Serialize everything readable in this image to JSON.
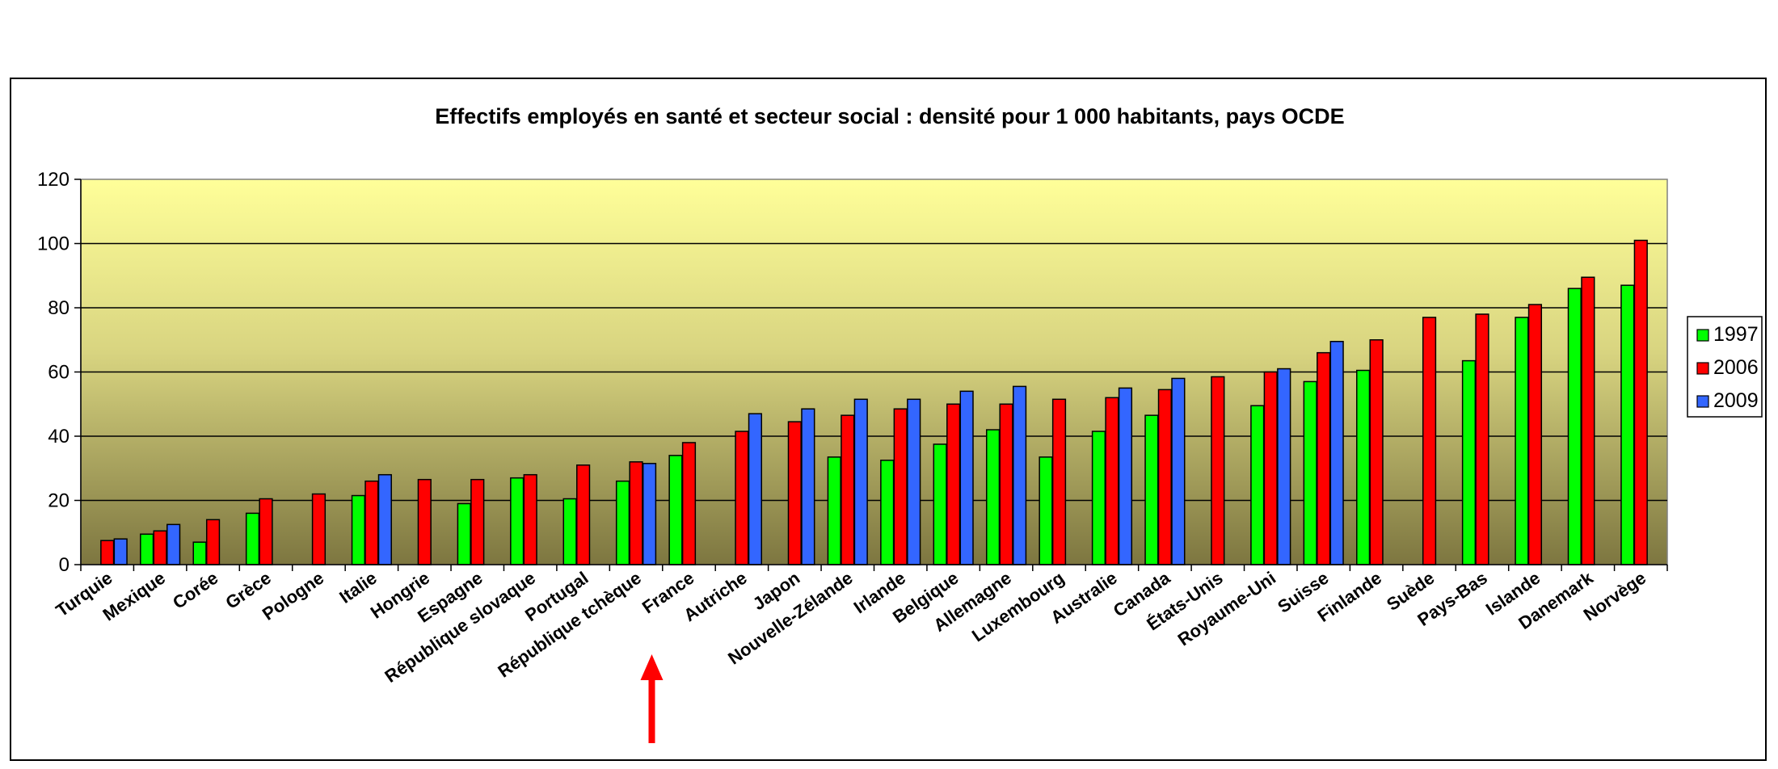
{
  "chart_data": {
    "type": "bar",
    "title": "Effectifs employés en santé et secteur social : densité pour 1 000 habitants, pays OCDE",
    "xlabel": "",
    "ylabel": "",
    "ylim": [
      0,
      120
    ],
    "yticks": [
      "0",
      "20",
      "40",
      "60",
      "80",
      "100",
      "120"
    ],
    "grid": true,
    "legend_position": "right",
    "categories": [
      "Turquie",
      "Mexique",
      "Corée",
      "Grèce",
      "Pologne",
      "Italie",
      "Hongrie",
      "Espagne",
      "République slovaque",
      "Portugal",
      "République tchèque",
      "France",
      "Autriche",
      "Japon",
      "Nouvelle-Zélande",
      "Irlande",
      "Belgique",
      "Allemagne",
      "Luxembourg",
      "Australie",
      "Canada",
      "États-Unis",
      "Royaume-Uni",
      "Suisse",
      "Finlande",
      "Suède",
      "Pays-Bas",
      "Islande",
      "Danemark",
      "Norvège"
    ],
    "series": [
      {
        "name": "1997",
        "color": "#00ff00",
        "values": [
          null,
          9.5,
          7,
          16,
          null,
          21.5,
          null,
          19,
          27,
          20.5,
          26,
          34,
          null,
          null,
          33.5,
          32.5,
          37.5,
          42,
          33.5,
          41.5,
          46.5,
          null,
          49.5,
          57,
          60.5,
          null,
          63.5,
          77,
          86,
          87
        ]
      },
      {
        "name": "2006",
        "color": "#ff0000",
        "values": [
          7.5,
          10.5,
          14,
          20.5,
          22,
          26,
          26.5,
          26.5,
          28,
          31,
          32,
          38,
          41.5,
          44.5,
          46.5,
          48.5,
          50,
          50,
          51.5,
          52,
          54.5,
          58.5,
          60,
          66,
          70,
          77,
          78,
          81,
          89.5,
          101
        ]
      },
      {
        "name": "2009",
        "color": "#3366ff",
        "values": [
          8,
          12.5,
          null,
          null,
          null,
          28,
          null,
          null,
          null,
          null,
          31.5,
          null,
          47,
          48.5,
          51.5,
          51.5,
          54,
          55.5,
          null,
          55,
          58,
          null,
          61,
          69.5,
          null,
          null,
          null,
          null,
          null,
          null
        ]
      }
    ],
    "annotations": [
      {
        "type": "arrow",
        "color": "#ff0000",
        "direction": "up",
        "target": "France"
      }
    ]
  }
}
